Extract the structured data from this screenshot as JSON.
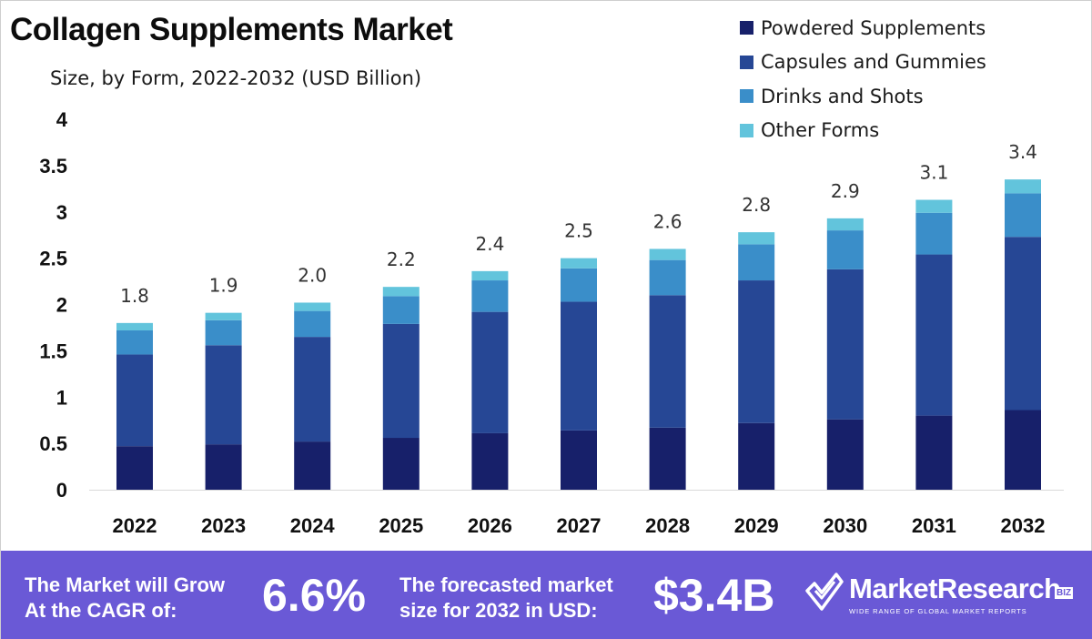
{
  "header": {
    "title": "Collagen Supplements Market",
    "subtitle": "Size, by Form, 2022-2032 (USD Billion)"
  },
  "colors": {
    "powdered": "#17206a",
    "capsules": "#264795",
    "drinks": "#3a8ec9",
    "other": "#62c4dc",
    "footer_bg": "#6a59d6",
    "axis_text": "#111111",
    "total_label": "#333333"
  },
  "chart_data": {
    "type": "bar",
    "stacked": true,
    "title": "Collagen Supplements Market",
    "subtitle": "Size, by Form, 2022-2032 (USD Billion)",
    "xlabel": "",
    "ylabel": "",
    "categories": [
      "2022",
      "2023",
      "2024",
      "2025",
      "2026",
      "2027",
      "2028",
      "2029",
      "2030",
      "2031",
      "2032"
    ],
    "series": [
      {
        "name": "Powdered Supplements",
        "values": [
          0.47,
          0.49,
          0.52,
          0.56,
          0.61,
          0.64,
          0.67,
          0.72,
          0.76,
          0.8,
          0.86
        ]
      },
      {
        "name": "Capsules and Gummies",
        "values": [
          0.99,
          1.07,
          1.13,
          1.23,
          1.31,
          1.39,
          1.43,
          1.54,
          1.62,
          1.74,
          1.87
        ]
      },
      {
        "name": "Drinks and Shots",
        "values": [
          0.26,
          0.27,
          0.28,
          0.3,
          0.34,
          0.36,
          0.38,
          0.39,
          0.42,
          0.45,
          0.47
        ]
      },
      {
        "name": "Other Forms",
        "values": [
          0.08,
          0.08,
          0.09,
          0.1,
          0.1,
          0.11,
          0.12,
          0.13,
          0.13,
          0.14,
          0.15
        ]
      }
    ],
    "totals": [
      "1.8",
      "1.9",
      "2.0",
      "2.2",
      "2.4",
      "2.5",
      "2.6",
      "2.8",
      "2.9",
      "3.1",
      "3.4"
    ],
    "yticks": [
      "0",
      "0.5",
      "1",
      "1.5",
      "2",
      "2.5",
      "3",
      "3.5",
      "4"
    ],
    "ylim": [
      0,
      4
    ],
    "grid": false,
    "legend_position": "top-right"
  },
  "footer": {
    "cagr_label_line1": "The Market will Grow",
    "cagr_label_line2": "At the CAGR of:",
    "cagr_value": "6.6%",
    "size_label_line1": "The forecasted market",
    "size_label_line2": "size for 2032 in USD:",
    "size_value": "$3.4B"
  },
  "logo": {
    "name": "MarketResearch",
    "badge": "BIZ",
    "tagline": "WIDE RANGE OF GLOBAL MARKET REPORTS"
  }
}
